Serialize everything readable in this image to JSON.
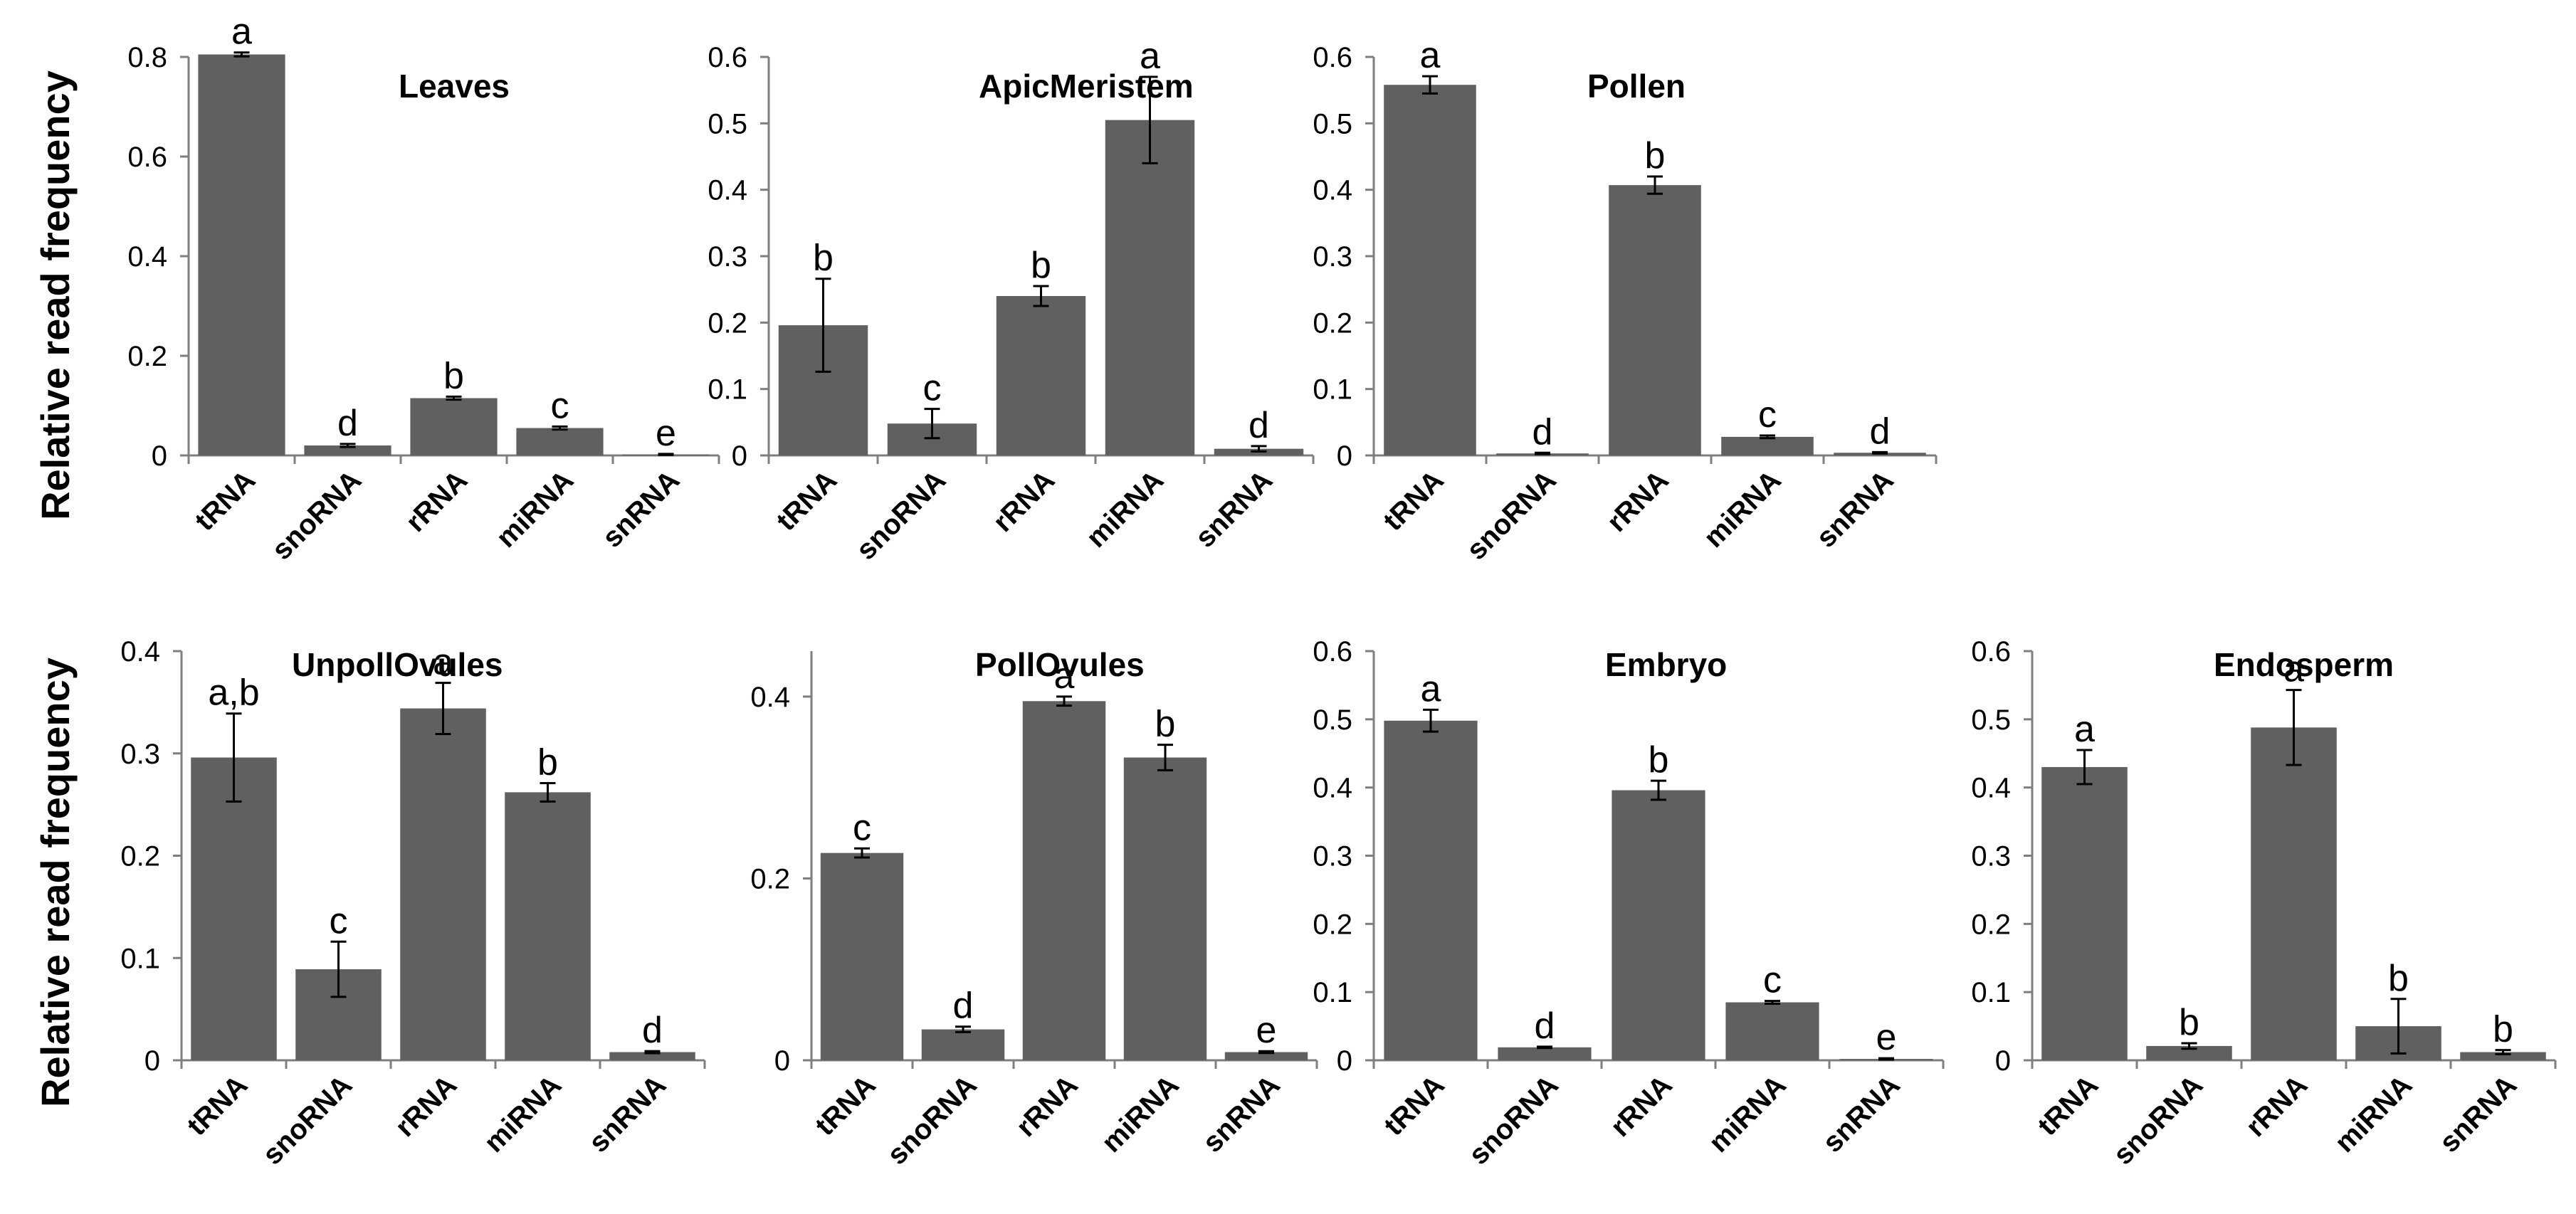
{
  "y_axis_label": "Relative read frequency",
  "colors": {
    "bar": "#606060",
    "axis": "#7f7f7f",
    "error": "#000000"
  },
  "chart_data": [
    {
      "type": "bar",
      "title": "Leaves",
      "xlabel": "",
      "ylabel": "Relative read frequency",
      "categories": [
        "tRNA",
        "snoRNA",
        "rRNA",
        "miRNA",
        "snRNA"
      ],
      "values": [
        0.805,
        0.02,
        0.115,
        0.055,
        0.002
      ],
      "errors": [
        0.004,
        0.003,
        0.003,
        0.003,
        0.001
      ],
      "significance": [
        "a",
        "d",
        "b",
        "c",
        "e"
      ],
      "ylim": [
        0,
        0.8
      ],
      "yticks": [
        0,
        0.2,
        0.4,
        0.6,
        0.8
      ],
      "ytick_labels": [
        "0",
        "0.2",
        "0.4",
        "0.6",
        "0.8"
      ],
      "grid": false
    },
    {
      "type": "bar",
      "title": "ApicMeristem",
      "xlabel": "",
      "ylabel": "Relative read frequency",
      "categories": [
        "tRNA",
        "snoRNA",
        "rRNA",
        "miRNA",
        "snRNA"
      ],
      "values": [
        0.196,
        0.048,
        0.24,
        0.505,
        0.01
      ],
      "errors": [
        0.07,
        0.022,
        0.015,
        0.065,
        0.004
      ],
      "significance": [
        "b",
        "c",
        "b",
        "a",
        "d"
      ],
      "ylim": [
        0,
        0.6
      ],
      "yticks": [
        0,
        0.1,
        0.2,
        0.3,
        0.4,
        0.5,
        0.6
      ],
      "ytick_labels": [
        "0",
        "0.1",
        "0.2",
        "0.3",
        "0.4",
        "0.5",
        "0.6"
      ],
      "grid": false
    },
    {
      "type": "bar",
      "title": "Pollen",
      "xlabel": "",
      "ylabel": "Relative read frequency",
      "categories": [
        "tRNA",
        "snoRNA",
        "rRNA",
        "miRNA",
        "snRNA"
      ],
      "values": [
        0.558,
        0.003,
        0.407,
        0.028,
        0.004
      ],
      "errors": [
        0.013,
        0.001,
        0.013,
        0.002,
        0.001
      ],
      "significance": [
        "a",
        "d",
        "b",
        "c",
        "d"
      ],
      "ylim": [
        0,
        0.6
      ],
      "yticks": [
        0,
        0.1,
        0.2,
        0.3,
        0.4,
        0.5,
        0.6
      ],
      "ytick_labels": [
        "0",
        "0.1",
        "0.2",
        "0.3",
        "0.4",
        "0.5",
        "0.6"
      ],
      "grid": false
    },
    {
      "type": "bar",
      "title": "UnpollOvules",
      "xlabel": "",
      "ylabel": "Relative read frequency",
      "categories": [
        "tRNA",
        "snoRNA",
        "rRNA",
        "miRNA",
        "snRNA"
      ],
      "values": [
        0.296,
        0.089,
        0.344,
        0.262,
        0.008
      ],
      "errors": [
        0.043,
        0.027,
        0.025,
        0.009,
        0.001
      ],
      "significance": [
        "a,b",
        "c",
        "a",
        "b",
        "d"
      ],
      "ylim": [
        0,
        0.4
      ],
      "yticks": [
        0,
        0.1,
        0.2,
        0.3,
        0.4
      ],
      "ytick_labels": [
        "0",
        "0.1",
        "0.2",
        "0.3",
        "0.4"
      ],
      "grid": false
    },
    {
      "type": "bar",
      "title": "PollOvules",
      "xlabel": "",
      "ylabel": "Relative read frequency",
      "categories": [
        "tRNA",
        "snoRNA",
        "rRNA",
        "miRNA",
        "snRNA"
      ],
      "values": [
        0.228,
        0.034,
        0.395,
        0.333,
        0.009
      ],
      "errors": [
        0.005,
        0.003,
        0.005,
        0.014,
        0.001
      ],
      "significance": [
        "c",
        "d",
        "a",
        "b",
        "e"
      ],
      "ylim": [
        0,
        0.45
      ],
      "yticks": [
        0,
        0.2,
        0.4
      ],
      "ytick_labels": [
        "0",
        "0.2",
        "0.4"
      ],
      "grid": false
    },
    {
      "type": "bar",
      "title": "Embryo",
      "xlabel": "",
      "ylabel": "Relative read frequency",
      "categories": [
        "tRNA",
        "snoRNA",
        "rRNA",
        "miRNA",
        "snRNA"
      ],
      "values": [
        0.498,
        0.019,
        0.396,
        0.085,
        0.002
      ],
      "errors": [
        0.016,
        0.001,
        0.014,
        0.002,
        0.001
      ],
      "significance": [
        "a",
        "d",
        "b",
        "c",
        "e"
      ],
      "ylim": [
        0,
        0.6
      ],
      "yticks": [
        0,
        0.1,
        0.2,
        0.3,
        0.4,
        0.5,
        0.6
      ],
      "ytick_labels": [
        "0",
        "0.1",
        "0.2",
        "0.3",
        "0.4",
        "0.5",
        "0.6"
      ],
      "grid": false
    },
    {
      "type": "bar",
      "title": "Endosperm",
      "xlabel": "",
      "ylabel": "Relative read frequency",
      "categories": [
        "tRNA",
        "snoRNA",
        "rRNA",
        "miRNA",
        "snRNA"
      ],
      "values": [
        0.43,
        0.021,
        0.488,
        0.05,
        0.012
      ],
      "errors": [
        0.025,
        0.004,
        0.055,
        0.04,
        0.003
      ],
      "significance": [
        "a",
        "b",
        "a",
        "b",
        "b"
      ],
      "ylim": [
        0,
        0.6
      ],
      "yticks": [
        0,
        0.1,
        0.2,
        0.3,
        0.4,
        0.5,
        0.6
      ],
      "ytick_labels": [
        "0",
        "0.1",
        "0.2",
        "0.3",
        "0.4",
        "0.5",
        "0.6"
      ],
      "grid": false
    }
  ]
}
